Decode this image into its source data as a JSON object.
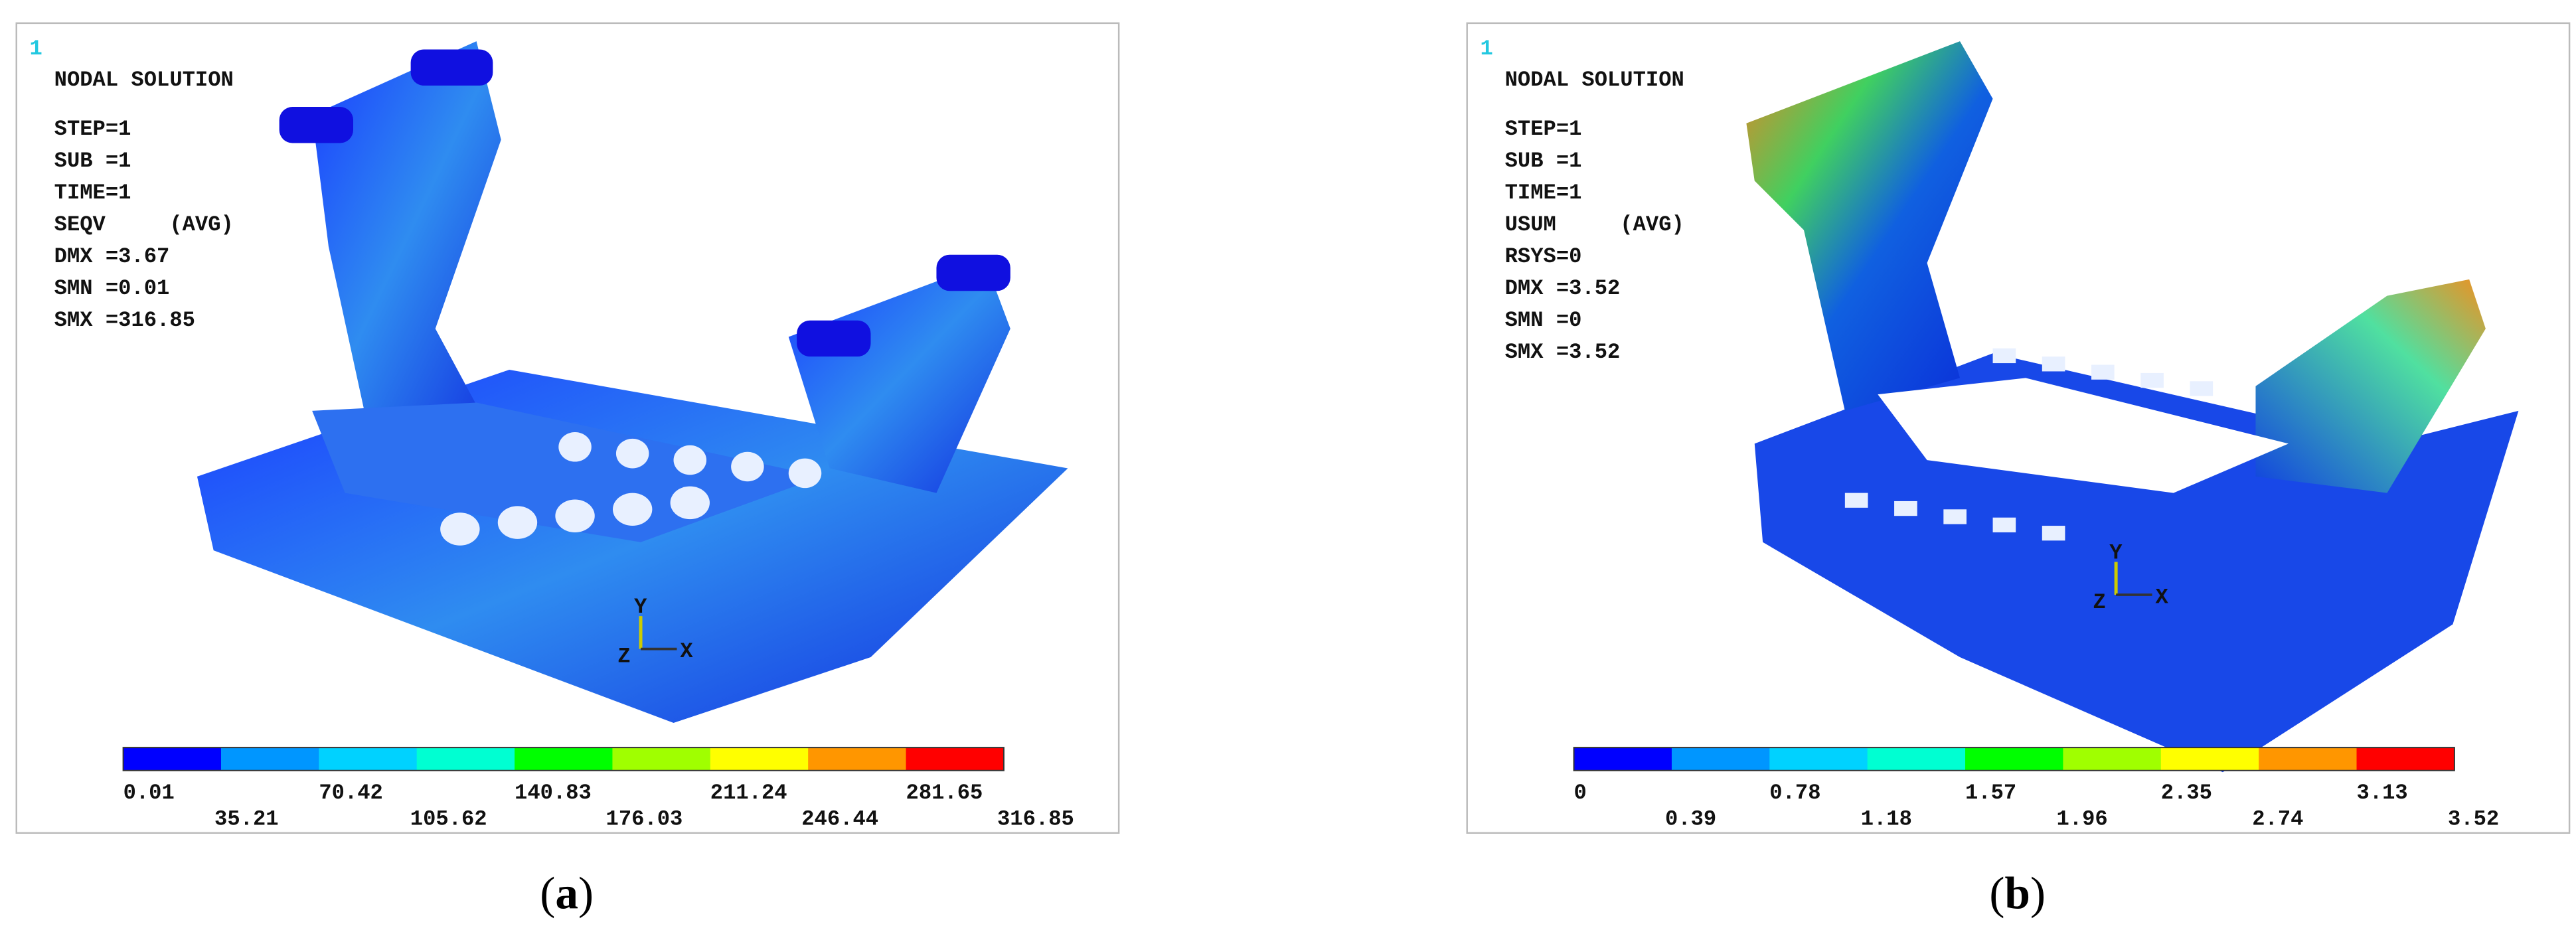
{
  "panels": [
    {
      "index": "1",
      "lines": [
        "NODAL SOLUTION",
        "STEP=1",
        "SUB =1",
        "TIME=1",
        "SEQV     (AVG)",
        "DMX =3.67",
        "SMN =0.01",
        "SMX =316.85"
      ],
      "legend_colors": [
        "#0000ff",
        "#0096ff",
        "#00d2ff",
        "#00ffd2",
        "#00ff00",
        "#a0ff00",
        "#ffff00",
        "#ff9600",
        "#ff0000"
      ],
      "legend_labels": [
        "0.01",
        "35.21",
        "70.42",
        "105.62",
        "140.83",
        "176.03",
        "211.24",
        "246.44",
        "281.65",
        "316.85"
      ],
      "axis_labels": [
        "Y",
        "Z",
        "X"
      ],
      "caption": [
        "(",
        "a",
        ")"
      ]
    },
    {
      "index": "1",
      "lines": [
        "NODAL SOLUTION",
        "STEP=1",
        "SUB =1",
        "TIME=1",
        "USUM     (AVG)",
        "RSYS=0",
        "DMX =3.52",
        "SMN =0",
        "SMX =3.52"
      ],
      "legend_colors": [
        "#0000ff",
        "#0096ff",
        "#00d2ff",
        "#00ffd2",
        "#00ff00",
        "#a0ff00",
        "#ffff00",
        "#ff9600",
        "#ff0000"
      ],
      "legend_labels": [
        "0",
        "0.39",
        "0.78",
        "1.18",
        "1.57",
        "1.96",
        "2.35",
        "2.74",
        "3.13",
        "3.52"
      ],
      "axis_labels": [
        "Y",
        "Z",
        "X"
      ],
      "caption": [
        "(",
        "b",
        ")"
      ]
    }
  ]
}
